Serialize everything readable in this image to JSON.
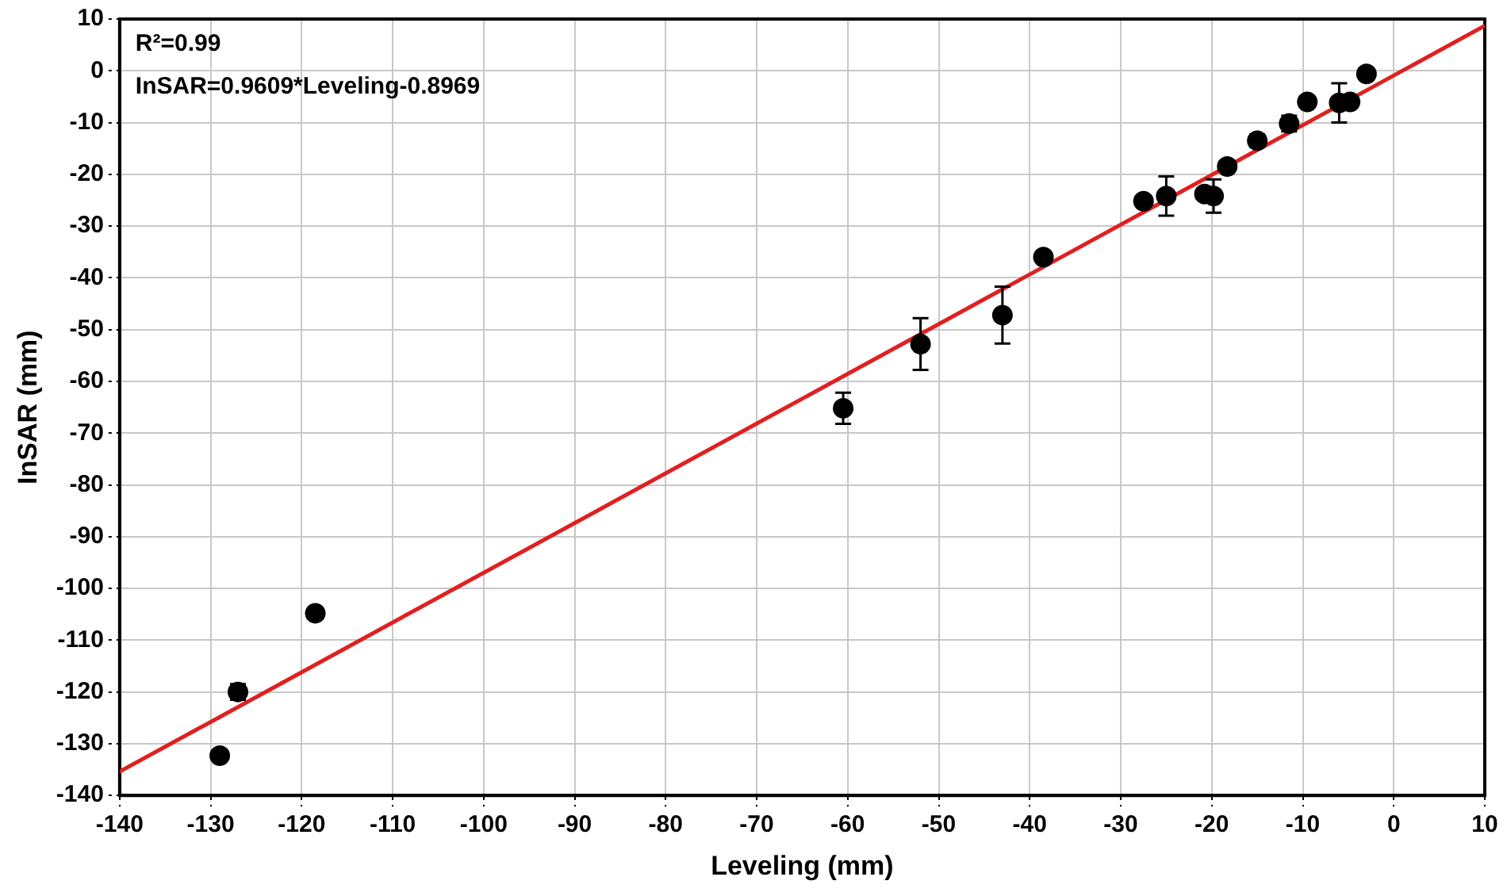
{
  "chart_data": {
    "type": "scatter",
    "xlabel": "Leveling (mm)",
    "ylabel": "InSAR (mm)",
    "annotations": [
      "R²=0.99",
      "InSAR=0.9609*Leveling-0.8969"
    ],
    "xlim": [
      -140,
      10
    ],
    "xticks": [
      -140,
      -130,
      -120,
      -110,
      -100,
      -90,
      -80,
      -70,
      -60,
      -50,
      -40,
      -30,
      -20,
      -10,
      0,
      10
    ],
    "ylim": [
      -140,
      10
    ],
    "yticks": [
      -140,
      -130,
      -120,
      -110,
      -100,
      -90,
      -80,
      -70,
      -60,
      -50,
      -40,
      -30,
      -20,
      -10,
      0,
      10
    ],
    "grid": true,
    "legend": false,
    "marker": "circle",
    "series": [
      {
        "type": "scatter",
        "color": "#000000",
        "x": [
          -129,
          -127,
          -118.5,
          -60.5,
          -52,
          -43,
          -38.5,
          -27.5,
          -25,
          -20.8,
          -19.8,
          -18.3,
          -15,
          -11.5,
          -9.5,
          -6,
          -4.8,
          -3
        ],
        "values": [
          -132.3,
          -120,
          -104.8,
          -65.2,
          -52.8,
          -47.2,
          -36,
          -25.2,
          -24.2,
          -23.8,
          -24.2,
          -18.5,
          -13.5,
          -10.2,
          -6,
          -6.2,
          -6,
          -0.6
        ],
        "errors": [
          1,
          1.5,
          1,
          3,
          5,
          5.5,
          null,
          null,
          3.8,
          null,
          3.2,
          null,
          1.2,
          1.5,
          null,
          3.8,
          null,
          1
        ]
      },
      {
        "type": "line",
        "color": "#e02020",
        "x": [
          -140,
          10
        ],
        "values": [
          -135.4,
          8.7
        ],
        "marker": "none",
        "line_style": "solid"
      }
    ]
  }
}
